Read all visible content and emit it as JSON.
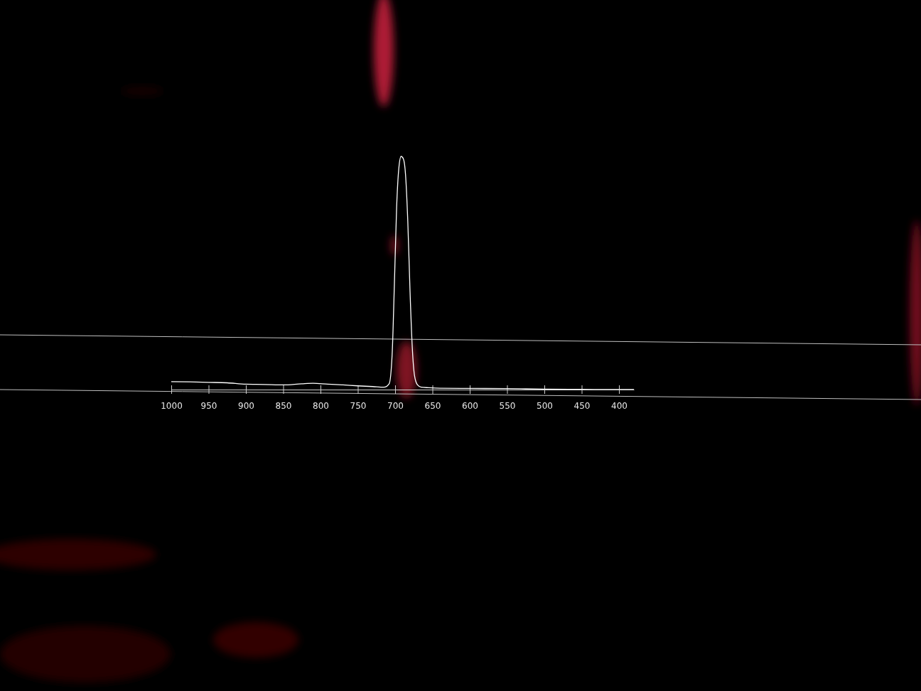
{
  "chart_data": {
    "type": "line",
    "x": [
      1000,
      975,
      950,
      925,
      900,
      875,
      850,
      825,
      810,
      790,
      770,
      750,
      730,
      715,
      708,
      704,
      701,
      698,
      695,
      692,
      689,
      686,
      683,
      680,
      677,
      674,
      670,
      665,
      655,
      640,
      600,
      550,
      500,
      450,
      400,
      380
    ],
    "values": [
      3.4,
      3.3,
      3.1,
      2.9,
      2.3,
      2.2,
      2.0,
      2.5,
      2.7,
      2.3,
      2.0,
      1.6,
      1.3,
      1.0,
      2.5,
      15,
      45,
      78,
      95,
      100,
      99,
      92,
      72,
      42,
      18,
      6,
      2,
      1,
      0.8,
      0.6,
      0.5,
      0.4,
      0.2,
      0.1,
      0,
      0
    ],
    "color": "#ffffff",
    "xlim": [
      1000,
      380
    ],
    "xticks": [
      1000,
      950,
      900,
      850,
      800,
      750,
      700,
      650,
      600,
      550,
      500,
      450,
      400
    ],
    "ylim": [
      0,
      100
    ],
    "tick_labels": "x"
  }
}
